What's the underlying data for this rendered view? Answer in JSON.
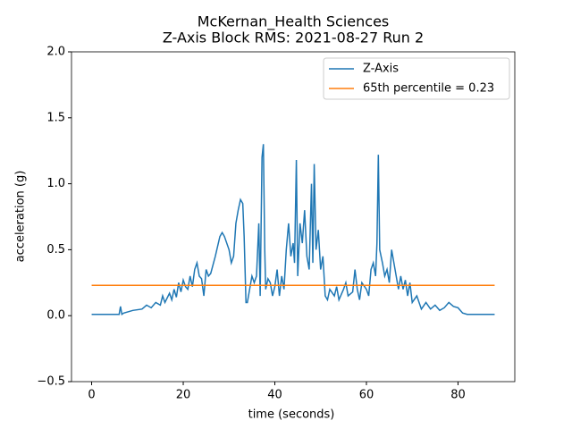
{
  "chart_data": {
    "type": "line",
    "title": "McKernan_Health Sciences",
    "subtitle": "Z-Axis Block RMS: 2021-08-27 Run 2",
    "x_label": "time (seconds)",
    "y_label": "acceleration (g)",
    "xlim": [
      -4.4,
      92.4
    ],
    "ylim": [
      -0.5,
      2.0
    ],
    "xticks": [
      0,
      20,
      40,
      60,
      80
    ],
    "yticks": [
      {
        "value": -0.5,
        "label": "−0.5"
      },
      {
        "value": 0,
        "label": "0.0"
      },
      0.5,
      {
        "value": 1.0,
        "label": "1.0"
      },
      1.5,
      {
        "value": 2.0,
        "label": "2.0"
      }
    ],
    "legend": "upper right",
    "series": [
      {
        "name": "Z-Axis",
        "color": "#1f77b4",
        "x": [
          0,
          6,
          6.3,
          6.6,
          7,
          9,
          11,
          12,
          13,
          14,
          15,
          15.5,
          16,
          17,
          17.5,
          18,
          18.5,
          19,
          19.5,
          20,
          20.5,
          21,
          21.5,
          22,
          22.5,
          23,
          23.5,
          24,
          24.5,
          25,
          25.5,
          26,
          27,
          28,
          28.5,
          29,
          30,
          30.5,
          31,
          31.5,
          32,
          32.5,
          33,
          33.3,
          33.7,
          34,
          34.5,
          35,
          35.5,
          36,
          36.5,
          36.8,
          37.2,
          37.5,
          37.8,
          38,
          38.5,
          39,
          39.5,
          40,
          40.5,
          41,
          41.5,
          42,
          42.5,
          43,
          43.5,
          44,
          44.3,
          44.7,
          45,
          45.5,
          46,
          46.5,
          47,
          47.5,
          48,
          48.3,
          48.6,
          49,
          49.5,
          50,
          50.5,
          51,
          51.5,
          52,
          53,
          53.5,
          54,
          55,
          55.5,
          56,
          57,
          57.5,
          58,
          58.5,
          59,
          60,
          60.5,
          61,
          61.5,
          62,
          62.3,
          62.6,
          62.9,
          63.5,
          64,
          64.5,
          65,
          65.5,
          66,
          66.5,
          67,
          67.5,
          68,
          68.5,
          69,
          69.5,
          70,
          71,
          72,
          73,
          74,
          75,
          76,
          77,
          78,
          79,
          80,
          81,
          82,
          88
        ],
        "values": [
          0.01,
          0.01,
          0.07,
          0.01,
          0.02,
          0.04,
          0.05,
          0.08,
          0.06,
          0.1,
          0.08,
          0.15,
          0.1,
          0.17,
          0.12,
          0.2,
          0.14,
          0.25,
          0.18,
          0.27,
          0.22,
          0.2,
          0.3,
          0.22,
          0.35,
          0.4,
          0.3,
          0.28,
          0.15,
          0.35,
          0.3,
          0.32,
          0.45,
          0.6,
          0.63,
          0.6,
          0.5,
          0.4,
          0.45,
          0.7,
          0.8,
          0.88,
          0.85,
          0.6,
          0.1,
          0.1,
          0.2,
          0.3,
          0.25,
          0.3,
          0.7,
          0.15,
          1.2,
          1.3,
          0.5,
          0.2,
          0.28,
          0.25,
          0.15,
          0.22,
          0.35,
          0.15,
          0.3,
          0.2,
          0.5,
          0.7,
          0.45,
          0.55,
          0.4,
          1.18,
          0.3,
          0.7,
          0.55,
          0.8,
          0.45,
          0.35,
          1.0,
          0.4,
          1.15,
          0.5,
          0.65,
          0.35,
          0.45,
          0.15,
          0.12,
          0.2,
          0.15,
          0.22,
          0.12,
          0.2,
          0.25,
          0.15,
          0.18,
          0.35,
          0.2,
          0.12,
          0.25,
          0.2,
          0.15,
          0.35,
          0.4,
          0.3,
          0.55,
          1.22,
          0.5,
          0.4,
          0.3,
          0.35,
          0.25,
          0.5,
          0.4,
          0.3,
          0.2,
          0.3,
          0.2,
          0.27,
          0.15,
          0.25,
          0.1,
          0.15,
          0.05,
          0.1,
          0.05,
          0.08,
          0.04,
          0.06,
          0.1,
          0.07,
          0.06,
          0.02,
          0.01,
          0.01
        ]
      },
      {
        "name": "65th percentile = 0.23",
        "color": "#ff7f0e",
        "x": [
          0,
          88
        ],
        "values": [
          0.23,
          0.23
        ]
      }
    ]
  }
}
